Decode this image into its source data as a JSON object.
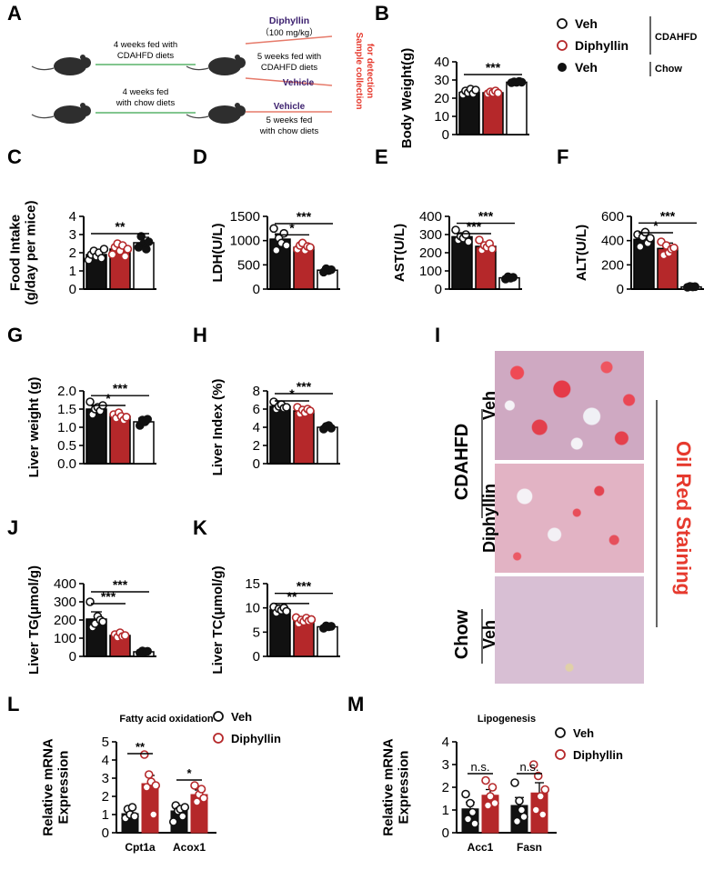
{
  "panel_letters": {
    "A": "A",
    "B": "B",
    "C": "C",
    "D": "D",
    "E": "E",
    "F": "F",
    "G": "G",
    "H": "H",
    "I": "I",
    "J": "J",
    "K": "K",
    "L": "L",
    "M": "M"
  },
  "colors": {
    "veh_cdahfd": "#111111",
    "diphyllin": "#b5282a",
    "chow": "#ffffff",
    "title_red": "#e63a2e",
    "arrow_purple": "#3b1f6e"
  },
  "schematic": {
    "top_left_text": [
      "4 weeks fed with",
      "CDAHFD diets"
    ],
    "bottom_left_text": [
      "4 weeks fed",
      "with chow diets"
    ],
    "diphyllin_label": "Diphyllin",
    "dose_label": "（100 mg/kg）",
    "top_right_text": [
      "5 weeks fed with",
      "CDAHFD diets"
    ],
    "vehicle_label_1": "Vehicle",
    "vehicle_label_2": "Vehicle",
    "bottom_right_text": [
      "5 weeks fed",
      "with chow diets"
    ],
    "sample_collection": [
      "Sample collection",
      "for detection"
    ]
  },
  "legend_top": {
    "items": [
      "Veh",
      "Diphyllin",
      "Veh"
    ],
    "group_cdahfd": "CDAHFD",
    "group_chow": "Chow"
  },
  "histology": {
    "title": "Oil Red Staining",
    "group_cdahfd": "CDAHFD",
    "group_chow": "Chow",
    "row_labels": [
      "Veh",
      "Diphyllin",
      "Veh"
    ]
  },
  "chart_data": [
    {
      "id": "B",
      "type": "bar",
      "ylabel": "Body Weight(g)",
      "ylim": [
        0,
        40
      ],
      "yticks": [
        "0",
        "10",
        "20",
        "30",
        "40"
      ],
      "values": [
        23.2,
        23.0,
        28.8
      ],
      "errors": [
        1.3,
        0.7,
        0.8
      ],
      "points": [
        [
          22,
          24,
          23,
          25,
          22.5,
          24.5
        ],
        [
          22.5,
          23.5,
          23,
          24,
          22.8
        ],
        [
          28.5,
          29,
          28.7,
          29.2,
          28.8
        ]
      ],
      "sig": [
        {
          "from": 0,
          "to": 2,
          "text": "***",
          "y": 33
        }
      ]
    },
    {
      "id": "C",
      "type": "bar",
      "ylabel": "Food Intake\n(g/day per mice)",
      "ylim": [
        0,
        4
      ],
      "yticks": [
        "0",
        "1",
        "2",
        "3",
        "4"
      ],
      "values": [
        1.9,
        2.2,
        2.55
      ],
      "errors": [
        0.25,
        0.25,
        0.3
      ],
      "points": [
        [
          1.6,
          1.9,
          2.1,
          1.8,
          2.0,
          1.7,
          2.2
        ],
        [
          1.9,
          2.3,
          2.5,
          2.1,
          2.4,
          1.8,
          2.2
        ],
        [
          2.3,
          2.9,
          2.5,
          2.2,
          2.6
        ]
      ],
      "sig": [
        {
          "from": 0,
          "to": 2,
          "text": "**",
          "y": 3.05
        }
      ]
    },
    {
      "id": "D",
      "type": "bar",
      "ylabel": "LDH(U/L)",
      "ylim": [
        0,
        1500
      ],
      "yticks": [
        "0",
        "500",
        "1000",
        "1500"
      ],
      "values": [
        1030,
        860,
        390
      ],
      "errors": [
        110,
        50,
        50
      ],
      "points": [
        [
          1250,
          800,
          1050,
          950,
          1150,
          900
        ],
        [
          820,
          900,
          950,
          800,
          880,
          860
        ],
        [
          350,
          420,
          380,
          400
        ]
      ],
      "sig": [
        {
          "from": 0,
          "to": 1,
          "text": "*",
          "y": 1120
        },
        {
          "from": 0,
          "to": 2,
          "text": "***",
          "y": 1350
        }
      ]
    },
    {
      "id": "E",
      "type": "bar",
      "ylabel": "AST(U/L)",
      "ylim": [
        0,
        400
      ],
      "yticks": [
        "0",
        "100",
        "200",
        "300",
        "400"
      ],
      "values": [
        288,
        235,
        62
      ],
      "errors": [
        20,
        15,
        8
      ],
      "points": [
        [
          325,
          270,
          290,
          280,
          300,
          260
        ],
        [
          270,
          215,
          240,
          230,
          250,
          220
        ],
        [
          55,
          68,
          60,
          65
        ]
      ],
      "sig": [
        {
          "from": 0,
          "to": 1,
          "text": "***",
          "y": 305
        },
        {
          "from": 0,
          "to": 2,
          "text": "***",
          "y": 362
        }
      ]
    },
    {
      "id": "F",
      "type": "bar",
      "ylabel": "ALT(U/L)",
      "ylim": [
        0,
        600
      ],
      "yticks": [
        "0",
        "200",
        "400",
        "600"
      ],
      "values": [
        410,
        335,
        18
      ],
      "errors": [
        35,
        45,
        5
      ],
      "points": [
        [
          450,
          350,
          430,
          470,
          380,
          420
        ],
        [
          390,
          280,
          360,
          300,
          330,
          340
        ],
        [
          15,
          22,
          18,
          20
        ]
      ],
      "sig": [
        {
          "from": 0,
          "to": 1,
          "text": "*",
          "y": 465
        },
        {
          "from": 0,
          "to": 2,
          "text": "***",
          "y": 545
        }
      ]
    },
    {
      "id": "G",
      "type": "bar",
      "ylabel": "Liver weight (g)",
      "ylim": [
        0,
        2
      ],
      "yticks": [
        "0.0",
        "0.5",
        "1.0",
        "1.5",
        "2.0"
      ],
      "values": [
        1.5,
        1.3,
        1.15
      ],
      "errors": [
        0.1,
        0.06,
        0.1
      ],
      "points": [
        [
          1.7,
          1.35,
          1.5,
          1.55,
          1.45,
          1.6
        ],
        [
          1.35,
          1.25,
          1.4,
          1.3,
          1.2,
          1.28
        ],
        [
          1.05,
          1.2,
          1.15,
          1.22
        ]
      ],
      "sig": [
        {
          "from": 0,
          "to": 1,
          "text": "*",
          "y": 1.6
        },
        {
          "from": 0,
          "to": 2,
          "text": "***",
          "y": 1.87
        }
      ]
    },
    {
      "id": "H",
      "type": "bar",
      "ylabel": "Liver Index (%)",
      "ylim": [
        0,
        8
      ],
      "yticks": [
        "0",
        "2",
        "4",
        "6",
        "8"
      ],
      "values": [
        6.3,
        5.8,
        4.0
      ],
      "errors": [
        0.3,
        0.35,
        0.2
      ],
      "points": [
        [
          6.8,
          6.0,
          6.3,
          6.5,
          6.1,
          6.2
        ],
        [
          6.2,
          5.5,
          5.9,
          5.6,
          6.0,
          5.8
        ],
        [
          3.8,
          4.1,
          4.2,
          3.9
        ]
      ],
      "sig": [
        {
          "from": 0,
          "to": 1,
          "text": "*",
          "y": 6.9
        },
        {
          "from": 0,
          "to": 2,
          "text": "***",
          "y": 7.7
        }
      ]
    },
    {
      "id": "J",
      "type": "bar",
      "ylabel": "Liver TG(μmol/g)",
      "ylim": [
        0,
        400
      ],
      "yticks": [
        "0",
        "100",
        "200",
        "300",
        "400"
      ],
      "values": [
        205,
        115,
        25
      ],
      "errors": [
        40,
        10,
        5
      ],
      "points": [
        [
          300,
          160,
          180,
          220,
          200,
          190
        ],
        [
          120,
          105,
          130,
          110,
          115
        ],
        [
          20,
          30,
          25,
          28
        ]
      ],
      "sig": [
        {
          "from": 0,
          "to": 1,
          "text": "***",
          "y": 290
        },
        {
          "from": 0,
          "to": 2,
          "text": "***",
          "y": 355
        }
      ]
    },
    {
      "id": "K",
      "type": "bar",
      "ylabel": "Liver TC(μmol/g)",
      "ylim": [
        0,
        15
      ],
      "yticks": [
        "0",
        "5",
        "10",
        "15"
      ],
      "values": [
        9.6,
        7.5,
        6.1
      ],
      "errors": [
        0.5,
        0.6,
        0.3
      ],
      "points": [
        [
          10.2,
          9.0,
          9.8,
          9.5,
          10.0,
          9.3
        ],
        [
          8.0,
          6.8,
          7.5,
          7.2,
          7.9,
          7.3,
          7.6
        ],
        [
          5.8,
          6.3,
          6.1,
          6.2
        ]
      ],
      "sig": [
        {
          "from": 0,
          "to": 1,
          "text": "**",
          "y": 10.9
        },
        {
          "from": 0,
          "to": 2,
          "text": "***",
          "y": 13.0
        }
      ]
    },
    {
      "id": "L",
      "type": "bar",
      "title": "Fatty acid oxidation",
      "ylabel": "Relative mRNA\nExpression",
      "ylim": [
        0,
        5
      ],
      "yticks": [
        "0",
        "1",
        "2",
        "3",
        "4",
        "5"
      ],
      "categories": [
        "Cpt1a",
        "Acox1"
      ],
      "series": [
        {
          "name": "Veh",
          "values": [
            1.05,
            1.2
          ],
          "errors": [
            0.2,
            0.25
          ],
          "points": [
            [
              0.8,
              1.3,
              1.0,
              1.4,
              0.9
            ],
            [
              0.6,
              1.5,
              1.2,
              1.3,
              0.9,
              1.4
            ]
          ]
        },
        {
          "name": "Diphyllin",
          "values": [
            2.7,
            2.1
          ],
          "errors": [
            0.45,
            0.25
          ],
          "points": [
            [
              4.3,
              2.5,
              3.2,
              2.8,
              1.0,
              2.6
            ],
            [
              2.6,
              1.7,
              2.1,
              2.4,
              1.9
            ]
          ]
        }
      ],
      "sig": [
        {
          "cat": 0,
          "text": "**",
          "y": 4.35
        },
        {
          "cat": 1,
          "text": "*",
          "y": 2.9
        }
      ]
    },
    {
      "id": "M",
      "type": "bar",
      "title": "Lipogenesis",
      "ylabel": "Relative mRNA\nExpression",
      "ylim": [
        0,
        4
      ],
      "yticks": [
        "0",
        "1",
        "2",
        "3",
        "4"
      ],
      "categories": [
        "Acc1",
        "Fasn"
      ],
      "series": [
        {
          "name": "Veh",
          "values": [
            1.05,
            1.2
          ],
          "errors": [
            0.3,
            0.35
          ],
          "points": [
            [
              1.7,
              0.6,
              1.3,
              0.9,
              0.4
            ],
            [
              2.2,
              0.5,
              1.4,
              1.0,
              0.7
            ]
          ]
        },
        {
          "name": "Diphyllin",
          "values": [
            1.65,
            1.75
          ],
          "errors": [
            0.25,
            0.45
          ],
          "points": [
            [
              2.3,
              1.2,
              1.6,
              2.0,
              1.3
            ],
            [
              3.0,
              1.0,
              2.5,
              1.6,
              0.8,
              1.9
            ]
          ]
        }
      ],
      "sig": [
        {
          "cat": 0,
          "text": "n.s.",
          "y": 2.6
        },
        {
          "cat": 1,
          "text": "n.s.",
          "y": 2.6
        }
      ]
    }
  ],
  "legend_bottom": {
    "items": [
      "Veh",
      "Diphyllin"
    ]
  }
}
